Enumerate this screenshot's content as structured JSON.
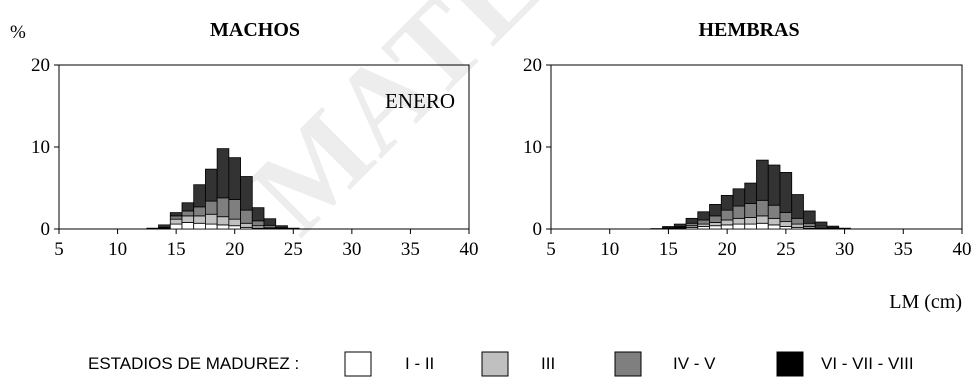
{
  "chart_data": [
    {
      "type": "bar",
      "stacked": true,
      "title": "MACHOS",
      "ylabel": "%",
      "annotation": "ENERO",
      "xlim": [
        5,
        40
      ],
      "ylim": [
        0,
        20
      ],
      "xticks": [
        5,
        10,
        15,
        20,
        25,
        30,
        35,
        40
      ],
      "yticks": [
        0,
        10,
        20
      ],
      "categories": [
        13,
        14,
        15,
        16,
        17,
        18,
        19,
        20,
        21,
        22,
        23,
        24,
        25
      ],
      "series": [
        {
          "name": "I - II",
          "color": "#ffffff",
          "values": [
            0.0,
            0.05,
            0.6,
            0.8,
            0.7,
            0.6,
            0.5,
            0.4,
            0.2,
            0.1,
            0.05,
            0.0,
            0.0
          ]
        },
        {
          "name": "III",
          "color": "#c0c0c0",
          "values": [
            0.0,
            0.1,
            0.6,
            0.8,
            0.9,
            1.2,
            1.0,
            0.8,
            0.5,
            0.3,
            0.1,
            0.05,
            0.0
          ]
        },
        {
          "name": "IV - V",
          "color": "#7f7f7f",
          "values": [
            0.0,
            0.05,
            0.4,
            0.6,
            1.1,
            1.6,
            2.3,
            2.4,
            1.6,
            0.6,
            0.3,
            0.1,
            0.0
          ]
        },
        {
          "name": "VI - VII - VIII",
          "color": "#333333",
          "values": [
            0.1,
            0.3,
            0.4,
            1.0,
            2.7,
            3.9,
            6.0,
            5.1,
            4.1,
            1.6,
            0.8,
            0.25,
            0.1
          ]
        }
      ]
    },
    {
      "type": "bar",
      "stacked": true,
      "title": "HEMBRAS",
      "xlabel": "LM (cm)",
      "xlim": [
        5,
        40
      ],
      "ylim": [
        0,
        20
      ],
      "xticks": [
        5,
        10,
        15,
        20,
        25,
        30,
        35,
        40
      ],
      "yticks": [
        0,
        10,
        20
      ],
      "categories": [
        14,
        15,
        16,
        17,
        18,
        19,
        20,
        21,
        22,
        23,
        24,
        25,
        26,
        27,
        28,
        29,
        30
      ],
      "series": [
        {
          "name": "I - II",
          "color": "#ffffff",
          "values": [
            0.0,
            0.05,
            0.1,
            0.2,
            0.3,
            0.4,
            0.5,
            0.6,
            0.6,
            0.7,
            0.5,
            0.3,
            0.2,
            0.1,
            0.05,
            0.0,
            0.0
          ]
        },
        {
          "name": "III",
          "color": "#c0c0c0",
          "values": [
            0.0,
            0.05,
            0.1,
            0.2,
            0.3,
            0.4,
            0.6,
            0.7,
            0.8,
            0.9,
            0.8,
            0.6,
            0.4,
            0.2,
            0.1,
            0.05,
            0.0
          ]
        },
        {
          "name": "IV - V",
          "color": "#7f7f7f",
          "values": [
            0.0,
            0.05,
            0.1,
            0.3,
            0.5,
            0.8,
            1.2,
            1.5,
            1.7,
            1.9,
            1.6,
            1.1,
            0.7,
            0.4,
            0.2,
            0.1,
            0.0
          ]
        },
        {
          "name": "VI - VII - VIII",
          "color": "#333333",
          "values": [
            0.05,
            0.15,
            0.3,
            0.6,
            1.0,
            1.4,
            1.8,
            2.1,
            2.5,
            4.9,
            4.9,
            4.9,
            2.9,
            1.5,
            0.5,
            0.2,
            0.1
          ]
        }
      ]
    }
  ],
  "legend": {
    "title": "ESTADIOS DE MADUREZ :",
    "items": [
      {
        "label": "I - II",
        "color": "#ffffff"
      },
      {
        "label": "III",
        "color": "#c0c0c0"
      },
      {
        "label": "IV - V",
        "color": "#7f7f7f"
      },
      {
        "label": "VI - VII - VIII",
        "color": "#000000"
      }
    ]
  },
  "watermark": "MATERIAL"
}
